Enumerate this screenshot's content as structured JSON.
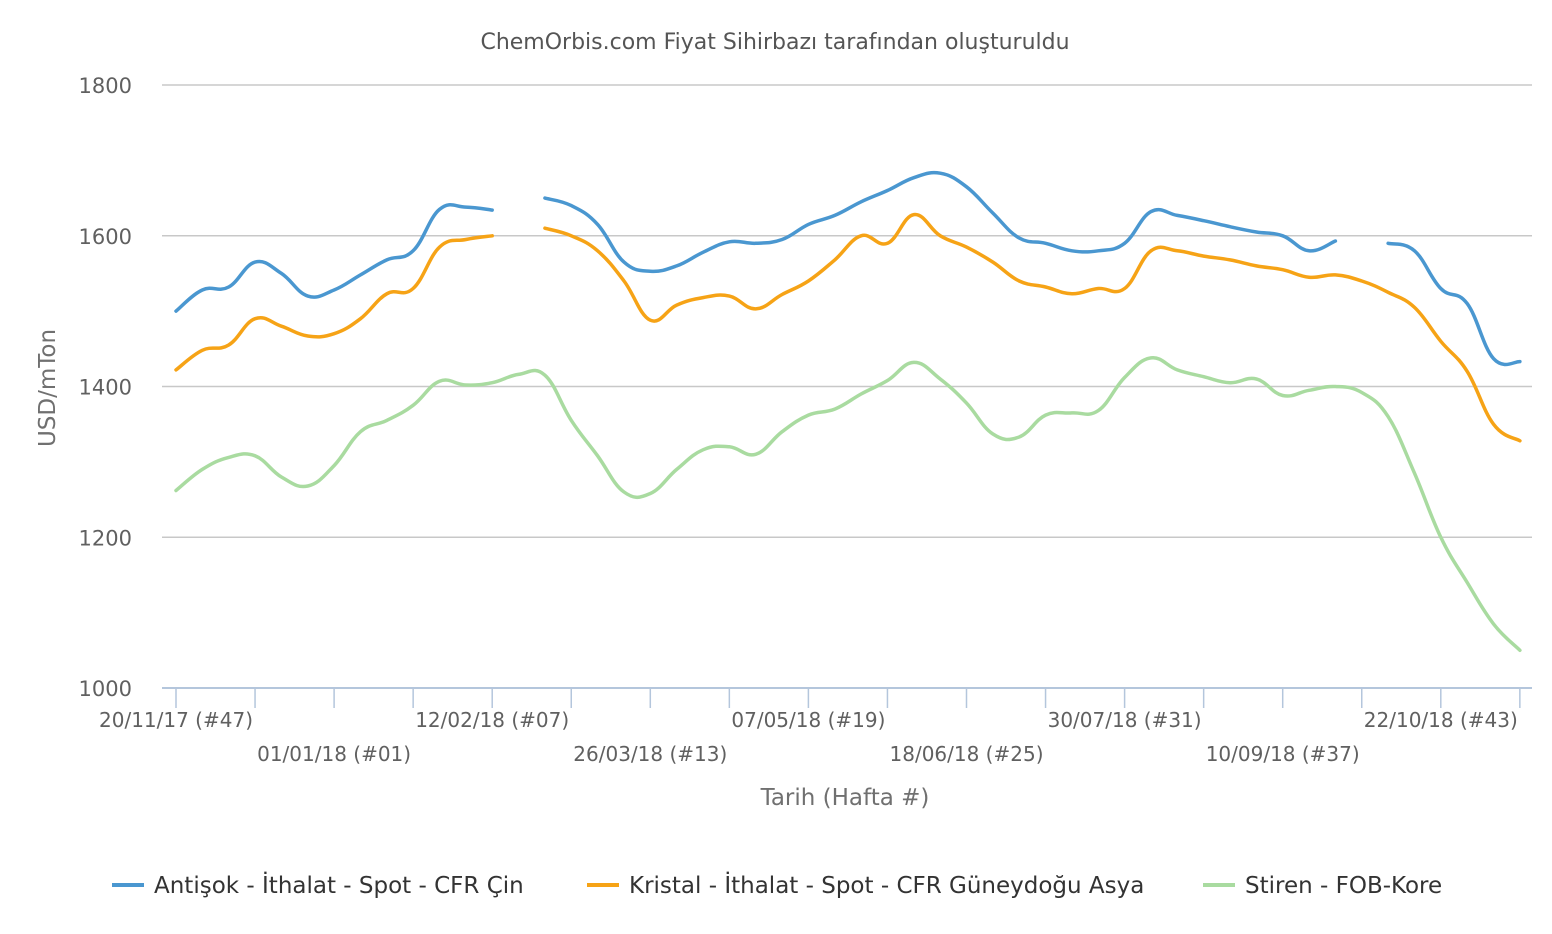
{
  "chart_data": {
    "type": "line",
    "title": "ChemOrbis.com Fiyat Sihirbazı tarafından oluşturuldu",
    "xlabel": "Tarih (Hafta #)",
    "ylabel": "USD/mTon",
    "ylim": [
      1000,
      1800
    ],
    "yticks": [
      "1000",
      "1200",
      "1400",
      "1600",
      "1800"
    ],
    "grid": true,
    "legend_position": "bottom",
    "x_start_week": 47,
    "x_labels": [
      {
        "week": 47,
        "label": "20/11/17 (#47)",
        "row": 0
      },
      {
        "week": 53,
        "label": "01/01/18 (#01)",
        "row": 1
      },
      {
        "week": 59,
        "label": "12/02/18 (#07)",
        "row": 0
      },
      {
        "week": 65,
        "label": "26/03/18 (#13)",
        "row": 1
      },
      {
        "week": 71,
        "label": "07/05/18 (#19)",
        "row": 0
      },
      {
        "week": 77,
        "label": "18/06/18 (#25)",
        "row": 1
      },
      {
        "week": 83,
        "label": "30/07/18 (#31)",
        "row": 0
      },
      {
        "week": 89,
        "label": "10/09/18 (#37)",
        "row": 1
      },
      {
        "week": 95,
        "label": "22/10/18 (#43)",
        "row": 0
      }
    ],
    "series": [
      {
        "name": "Antişok - İthalat - Spot - CFR Çin",
        "color": "#4a97d0",
        "values": [
          1500,
          1528,
          1532,
          1565,
          1550,
          1520,
          1528,
          1548,
          1568,
          1580,
          1635,
          1638,
          1634,
          null,
          1650,
          1640,
          1615,
          1565,
          1553,
          1560,
          1578,
          1592,
          1590,
          1595,
          1615,
          1627,
          1645,
          1660,
          1677,
          1683,
          1665,
          1630,
          1597,
          1590,
          1580,
          1580,
          1590,
          1632,
          1627,
          1620,
          1612,
          1605,
          1600,
          1580,
          1593,
          null,
          1590,
          1580,
          1530,
          1510,
          1437,
          1433
        ]
      },
      {
        "name": "Kristal - İthalat - Spot - CFR Güneydoğu Asya",
        "color": "#f6a316",
        "values": [
          1422,
          1448,
          1455,
          1490,
          1480,
          1467,
          1470,
          1490,
          1523,
          1530,
          1585,
          1595,
          1600,
          null,
          1610,
          1600,
          1580,
          1540,
          1488,
          1508,
          1518,
          1520,
          1503,
          1522,
          1540,
          1568,
          1600,
          1590,
          1628,
          1600,
          1585,
          1565,
          1540,
          1532,
          1523,
          1530,
          1530,
          1580,
          1580,
          1573,
          1568,
          1560,
          1555,
          1545,
          1548,
          1540,
          1525,
          1505,
          1460,
          1420,
          1350,
          1328
        ]
      },
      {
        "name": "Stiren - FOB-Kore",
        "color": "#a9dba0",
        "values": [
          1262,
          1290,
          1306,
          1308,
          1280,
          1268,
          1295,
          1340,
          1355,
          1375,
          1407,
          1402,
          1405,
          1416,
          1415,
          1355,
          1308,
          1260,
          1258,
          1290,
          1316,
          1320,
          1310,
          1340,
          1362,
          1370,
          1390,
          1408,
          1432,
          1410,
          1378,
          1337,
          1333,
          1362,
          1365,
          1368,
          1412,
          1438,
          1422,
          1413,
          1405,
          1410,
          1388,
          1395,
          1400,
          1392,
          1360,
          1285,
          1200,
          1140,
          1085,
          1050
        ]
      }
    ]
  }
}
